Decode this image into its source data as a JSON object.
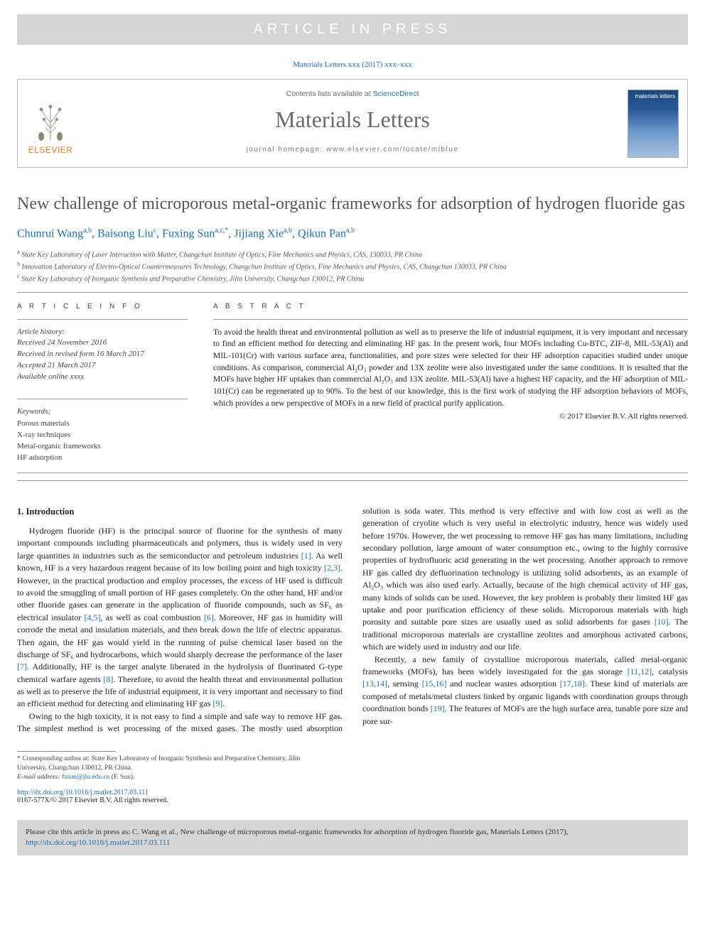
{
  "banner": {
    "text": "ARTICLE IN PRESS"
  },
  "cite_line": "Materials Letters xxx (2017) xxx–xxx",
  "header": {
    "contents_prefix": "Contents lists available at ",
    "sciencedirect": "ScienceDirect",
    "journal": "Materials Letters",
    "homepage_label": "journal homepage: ",
    "homepage_url": "www.elsevier.com/locate/mlblue",
    "publisher": "ELSEVIER",
    "cover_label": "materials letters"
  },
  "title": "New challenge of microporous metal-organic frameworks for adsorption of hydrogen fluoride gas",
  "authors": [
    {
      "name": "Chunrui Wang",
      "aff": "a,b"
    },
    {
      "name": "Baisong Liu",
      "aff": "c"
    },
    {
      "name": "Fuxing Sun",
      "aff": "a,c,",
      "corr": "*"
    },
    {
      "name": "Jijiang Xie",
      "aff": "a,b"
    },
    {
      "name": "Qikun Pan",
      "aff": "a,b"
    }
  ],
  "affiliations": [
    {
      "sup": "a",
      "text": "State Key Laboratory of Laser Interaction with Matter, Changchun Institute of Optics, Fine Mechanics and Physics, CAS, 130033, PR China"
    },
    {
      "sup": "b",
      "text": "Innovation Laboratory of Electro-Optical Countermeasures Technology, Changchun Institute of Optics, Fine Mechanics and Physics, CAS, Changchun 130033, PR China"
    },
    {
      "sup": "c",
      "text": "State Key Laboratory of Inorganic Synthesis and Preparative Chemistry, Jilin University, Changchun 130012, PR China"
    }
  ],
  "info_label": "A R T I C L E   I N F O",
  "abstract_label": "A B S T R A C T",
  "history": {
    "label": "Article history:",
    "received": "Received 24 November 2016",
    "revised": "Received in revised form 16 March 2017",
    "accepted": "Accepted 21 March 2017",
    "online": "Available online xxxx"
  },
  "keywords": {
    "label": "Keywords:",
    "items": [
      "Porous materials",
      "X-ray techniques",
      "Metal-organic frameworks",
      "HF adsorption"
    ]
  },
  "abstract": "To avoid the health threat and environmental pollution as well as to preserve the life of industrial equipment, it is very important and necessary to find an efficient method for detecting and eliminating HF gas. In the present work, four MOFs including Cu-BTC, ZIF-8, MIL-53(Al) and MIL-101(Cr) with various surface area, functionalities, and pore sizes were selected for their HF adsorption capacities studied under unique conditions. As comparison, commercial Al₂O₃ powder and 13X zeolite were also investigated under the same conditions. It is resulted that the MOFs have higher HF uptakes than commercial Al₂O₃ and 13X zeolite. MIL-53(Al) have a highest HF capacity, and the HF adsorption of MIL-101(Cr) can be regenerated up to 90%. To the best of our knowledge, this is the first work of studying the HF adsorption behaviors of MOFs, which provides a new perspective of MOFs in a new field of practical purify application.",
  "copyright": "© 2017 Elsevier B.V. All rights reserved.",
  "section1": {
    "heading": "1. Introduction",
    "p1_a": "Hydrogen fluoride (HF) is the principal source of fluorine for the synthesis of many important compounds including pharmaceuticals and polymers, thus is widely used in very large quantities in industries such as the semiconductor and petroleum industries ",
    "r1": "[1]",
    "p1_b": ". As well known, HF is a very hazardous reagent because of its low boiling point and high toxicity ",
    "r2": "[2,3]",
    "p1_c": ". However, in the practical production and employ processes, the excess of HF used is difficult to avoid the smuggling of small portion of HF gases completely. On the other hand, HF and/or other fluoride gases can generate in the application of fluoride compounds, such as SF₆ as electrical insulator ",
    "r3": "[4,5]",
    "p1_d": ", as well as coal combustion ",
    "r4": "[6]",
    "p1_e": ". Moreover, HF gas in humidity will corrode the metal and insulation materials, and then break down the life of electric apparatus. Then again, the HF gas would yield in the running of pulse chemical laser based on the discharge of SF₆ and hydrocarbons, which would sharply decrease the performance of the laser ",
    "r5": "[7]",
    "p1_f": ". Additionally, HF is the target analyte liberated in the hydrolysis of fluorinated G-type chemical warfare agents ",
    "r6": "[8]",
    "p1_g": ". Therefore, to avoid the health threat and environmental pollution as well as to preserve the life of industrial equipment, it is very important and necessary to find an efficient method for detecting and eliminating HF gas ",
    "r7": "[9]",
    "p1_h": ".",
    "p2_a": "Owing to the high toxicity, it is not easy to find a simple and safe way to remove HF gas. The simplest method is wet processing of the mixed gases. The mostly used absorption solution is soda water. This method is very effective and with low cost as well as the generation of cryolite which is very useful in electrolytic industry, hence was widely used before 1970s. However, the wet processing to remove HF gas has many limitations, including secondary pollution, large amount of water consumption etc., owing to the highly corrosive properties of hydrofluoric acid generating in the wet processing. Another approach to remove HF gas called dry defluorination technology is utilizing solid adsorbents, as an example of Al₂O₃ which was also used early. Actually, because of the high chemical activity of HF gas, many kinds of solids can be used. However, the key problem is probably their limited HF gas uptake and poor purification efficiency of these solids. Microporous materials with high porosity and suitable pore sizes are usually used as solid adsorbents for gases ",
    "r8": "[10]",
    "p2_b": ". The traditional microporous materials are crystalline zeolites and amorphous activated carbons, which are widely used in industry and our life.",
    "p3_a": "Recently, a new family of crystalline microporous materials, called metal-organic frameworks (MOFs), has been widely investigated for the gas storage ",
    "r9": "[11,12]",
    "p3_b": ", catalysis ",
    "r10": "[13,14]",
    "p3_c": ", sensing ",
    "r11": "[15,16]",
    "p3_d": " and nuclear wastes adsorption ",
    "r12": "[17,18]",
    "p3_e": ". These kind of materials are composed of metals/metal clusters linked by organic ligands with coordination groups through coordination bonds ",
    "r13": "[19]",
    "p3_f": ". The features of MOFs are the high surface area, tunable pore size and pore sur-"
  },
  "footnote": {
    "corr": "* Corresponding author at: State Key Laboratory of Inorganic Synthesis and Preparative Chemistry, Jilin University, Changchun 130012, PR China.",
    "email_label": "E-mail address: ",
    "email": "fxsun@jlu.edu.cn",
    "email_suffix": " (F. Sun)."
  },
  "doi": {
    "url": "http://dx.doi.org/10.1016/j.matlet.2017.03.111",
    "issn": "0167-577X/© 2017 Elsevier B.V. All rights reserved."
  },
  "citebox": {
    "prefix": "Please cite this article in press as: C. Wang et al., New challenge of microporous metal-organic frameworks for adsorption of hydrogen fluoride gas, Materials Letters (2017), ",
    "doi": "http://dx.doi.org/10.1016/j.matlet.2017.03.111"
  },
  "colors": {
    "link": "#1a6fb3",
    "banner_bg": "#d5d5d5",
    "publisher": "#ed7d1c"
  }
}
